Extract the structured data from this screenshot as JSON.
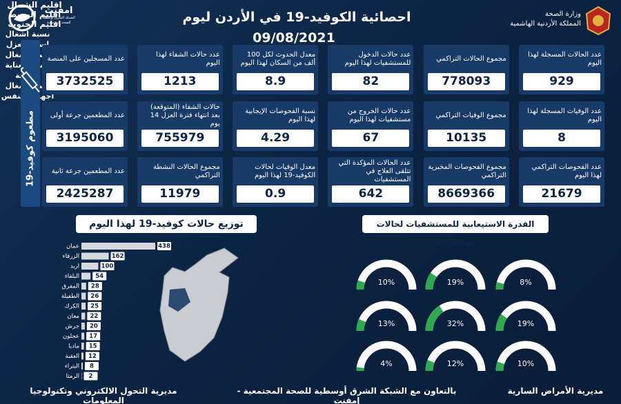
{
  "header": {
    "title": "احصائية الكوفيد-19 في الأردن ليوم",
    "date": "09/08/2021",
    "ministry": "وزارة الصحة",
    "kingdom": "المملكة الأردنية الهاشمية",
    "logo": "امفنت",
    "logo_sub": "الشبكة الشرق أوسطية للصحة المجتمعية"
  },
  "stats": [
    {
      "label": "عدد الحالات المسجلة لهذا اليوم",
      "value": 929
    },
    {
      "label": "مجموع الحالات التراكمي",
      "value": 778093
    },
    {
      "label": "عدد حالات الدخول للمستشفيات لهذا اليوم",
      "value": 82
    },
    {
      "label": "معدل الحدوث لكل 100 ألف من السكان لهذا اليوم",
      "value": 8.9
    },
    {
      "label": "عدد حالات الشفاء لهذا اليوم",
      "value": 1213
    },
    {
      "label": "عدد الوفيات المسجلة لهذا اليوم",
      "value": 8
    },
    {
      "label": "مجموع الوفيات التراكمي",
      "value": 10135
    },
    {
      "label": "عدد حالات الخروج من مستشفيات لهذا اليوم",
      "value": 67
    },
    {
      "label": "نسبة الفحوصات الإيجابية لهذا اليوم",
      "value": 4.29
    },
    {
      "label": "حالات الشفاء (المتوقعة) بعد انتهاء فترة العزل 14 يوم",
      "value": 755979
    },
    {
      "label": "عدد الفحوصات التراكمي لهذا اليوم",
      "value": 21679
    },
    {
      "label": "مجموع الفحوصات المخبرية التراكمي",
      "value": 8669366
    },
    {
      "label": "عدد الحالات المؤكدة التي تتلقى العلاج في المستشفيات",
      "value": 642
    },
    {
      "label": "معدل الوفيات لحالات الكوفيد-19 لهذا اليوم",
      "value": 0.9
    },
    {
      "label": "مجموع الحالات النشطة التراكمي",
      "value": 11979
    }
  ],
  "vaccination": {
    "title": "مطعوم كوفيد-19",
    "items": [
      {
        "label": "عدد المسجلين على المنصة",
        "value": 3732525
      },
      {
        "label": "عدد المطعمين جرعة أولى",
        "value": 3195060
      },
      {
        "label": "عدد المطعمين جرعة ثانية",
        "value": 2425287
      }
    ]
  },
  "chart_data": {
    "type": "bar",
    "title": "توزيع حالات كوفيد-19 لهذا اليوم",
    "categories": [
      "عمان",
      "الزرقاء",
      "اربد",
      "البلقاء",
      "المفرق",
      "الطفيلة",
      "الكرك",
      "معان",
      "جرش",
      "عجلون",
      "مادبا",
      "العقبة",
      "البتراء",
      "الرمثا"
    ],
    "values": [
      438,
      162,
      100,
      54,
      28,
      26,
      25,
      22,
      20,
      17,
      15,
      12,
      8,
      2
    ],
    "color": "#d6d9de"
  },
  "capacity": {
    "title": "القدرة الاستيعابية للمستشفيات لحالات كوفيد-19",
    "regions": [
      "اقليم الشمال",
      "اقليم الوسط",
      "اقليم الجنوب"
    ],
    "color": "#2fa84f",
    "rows": [
      {
        "label": "نسبة اشغال اسرة العزل",
        "values": [
          8,
          19,
          10
        ],
        "value_labels": [
          "8%",
          "19%",
          "10%"
        ]
      },
      {
        "label": "نسبة اشغال اسرة العناية الحثيثة",
        "values": [
          19,
          32,
          13
        ],
        "value_labels": [
          "19%",
          "32%",
          "13%"
        ]
      },
      {
        "label": "نسبة اشغال اجهزة التنفس",
        "values": [
          10,
          12,
          4
        ],
        "value_labels": [
          "10%",
          "12%",
          "4%"
        ]
      }
    ]
  },
  "footer": {
    "left": "مديرية التحول الالكتروني وتكنولوجيا المعلومات",
    "center": "بالتعاون مع الشبكة الشرق أوسطية للصحة المجتمعية - إمفنت",
    "right": "مديرية الأمراض السارية"
  }
}
